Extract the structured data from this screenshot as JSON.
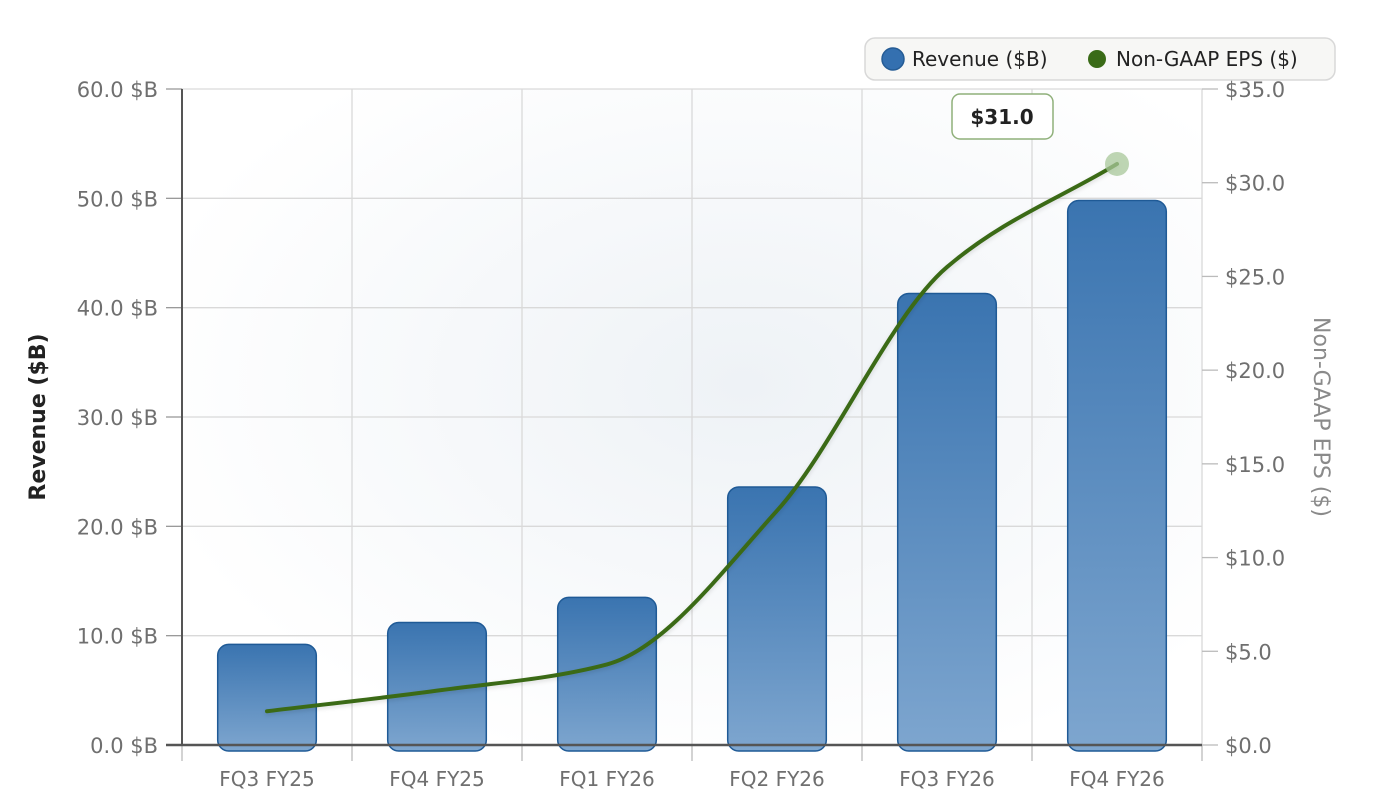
{
  "chart_data": {
    "type": "bar",
    "categories": [
      "FQ3 FY25",
      "FQ4 FY25",
      "FQ1 FY26",
      "FQ2 FY26",
      "FQ3 FY26",
      "FQ4 FY26"
    ],
    "series": [
      {
        "name": "Revenue ($B)",
        "type": "bar",
        "axis": "left",
        "color": "#3b76b2",
        "values": [
          9.2,
          11.2,
          13.5,
          23.6,
          41.3,
          49.8
        ]
      },
      {
        "name": "Non-GAAP EPS ($)",
        "type": "line",
        "axis": "right",
        "color": "#3a6b17",
        "values": [
          1.8,
          2.9,
          4.3,
          12.5,
          25.5,
          31.0
        ]
      }
    ],
    "ylabel": "Revenue ($B)",
    "y2label": "Non-GAAP EPS ($)",
    "ylim": [
      0,
      60
    ],
    "y2lim": [
      0,
      35
    ],
    "yticks": [
      "0.0 $B",
      "10.0 $B",
      "20.0 $B",
      "30.0 $B",
      "40.0 $B",
      "50.0 $B",
      "60.0 $B"
    ],
    "y2ticks": [
      "$0.0",
      "$5.0",
      "$10.0",
      "$15.0",
      "$20.0",
      "$25.0",
      "$30.0",
      "$35.0"
    ],
    "grid": true,
    "legend_position": "top-right",
    "annotation": {
      "text": "$31.0",
      "category": "FQ4 FY26",
      "series": "Non-GAAP EPS ($)"
    }
  }
}
